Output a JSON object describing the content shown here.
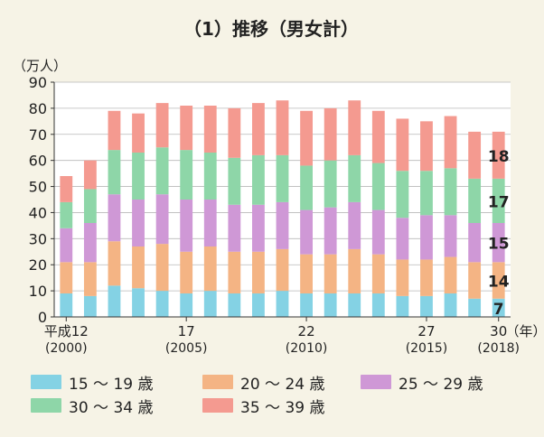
{
  "chart_data": {
    "type": "bar",
    "stacked": true,
    "title": "（1）推移（男女計）",
    "ylabel": "（万人）",
    "xunit": "（年）",
    "ylim": [
      0,
      90
    ],
    "yticks": [
      0,
      10,
      20,
      30,
      40,
      50,
      60,
      70,
      80,
      90
    ],
    "grid": true,
    "legend_position": "bottom",
    "categories": [
      "2000",
      "2001",
      "2002",
      "2003",
      "2004",
      "2005",
      "2006",
      "2007",
      "2008",
      "2009",
      "2010",
      "2011",
      "2012",
      "2013",
      "2014",
      "2015",
      "2016",
      "2017",
      "2018"
    ],
    "x_tick_labels": [
      {
        "index": 0,
        "line1": "平成12",
        "line2": "(2000)"
      },
      {
        "index": 5,
        "line1": "17",
        "line2": "(2005)"
      },
      {
        "index": 10,
        "line1": "22",
        "line2": "(2010)"
      },
      {
        "index": 15,
        "line1": "27",
        "line2": "(2015)"
      },
      {
        "index": 18,
        "line1": "30",
        "line2": "(2018)"
      }
    ],
    "series": [
      {
        "name": "15 〜 19 歳",
        "color": "#84d2e4",
        "values": [
          9,
          8,
          12,
          11,
          10,
          9,
          10,
          9,
          9,
          10,
          9,
          9,
          9,
          9,
          8,
          8,
          9,
          7,
          7
        ]
      },
      {
        "name": "20 〜 24 歳",
        "color": "#f4b484",
        "values": [
          12,
          13,
          17,
          16,
          18,
          16,
          17,
          16,
          16,
          16,
          15,
          15,
          17,
          15,
          14,
          14,
          14,
          14,
          14
        ]
      },
      {
        "name": "25 〜 29 歳",
        "color": "#cf98d6",
        "values": [
          13,
          15,
          18,
          18,
          19,
          20,
          18,
          18,
          18,
          18,
          17,
          18,
          18,
          17,
          16,
          17,
          16,
          15,
          15
        ]
      },
      {
        "name": "30 〜 34 歳",
        "color": "#8ed6a8",
        "values": [
          10,
          13,
          17,
          18,
          18,
          19,
          18,
          18,
          19,
          18,
          17,
          18,
          18,
          18,
          18,
          17,
          18,
          17,
          17
        ]
      },
      {
        "name": "35 〜 39 歳",
        "color": "#f49a90",
        "values": [
          10,
          11,
          15,
          15,
          17,
          17,
          18,
          19,
          20,
          21,
          21,
          20,
          21,
          20,
          20,
          19,
          20,
          18,
          18
        ]
      }
    ],
    "data_labels": {
      "category_index": 18,
      "values": [
        7,
        14,
        15,
        17,
        18
      ]
    }
  }
}
